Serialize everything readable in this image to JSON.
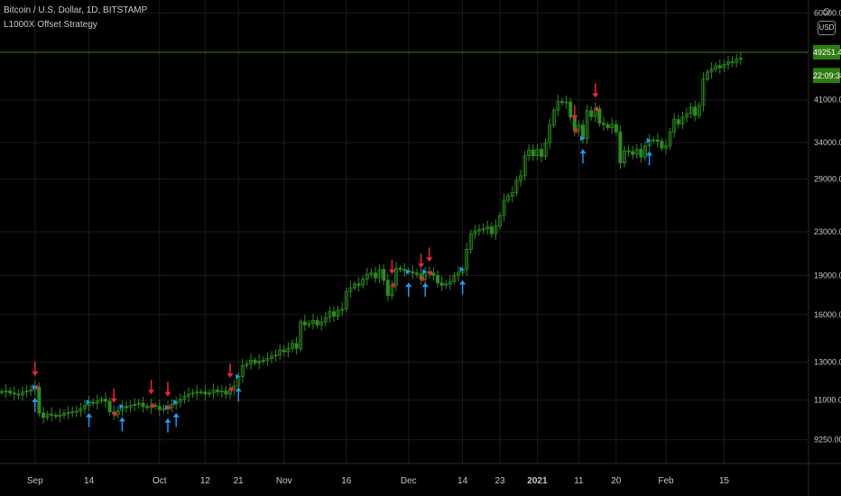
{
  "legend": {
    "title": "Bitcoin / U.S. Dollar, 1D, BITSTAMP",
    "indicator": "L1000X Offset Strategy"
  },
  "currency_button": "USD",
  "price_label": "49251.44",
  "countdown_label": "22:09:38",
  "colors": {
    "background": "#000000",
    "candle": "#2e8b1f",
    "tag": "#2e7d0f",
    "grid": "#1c1c1c",
    "up_arrow": "#2196f3",
    "down_arrow": "#f0233c",
    "axis_text": "#c8c8c8",
    "price_line": "#3d7a16"
  },
  "chart_data": {
    "type": "candlestick",
    "y_scale": "log",
    "ylim": [
      8400,
      62000
    ],
    "y_ticks": [
      {
        "v": 60000,
        "label": "60000.00"
      },
      {
        "v": 41000,
        "label": "41000.00"
      },
      {
        "v": 34000,
        "label": "34000.00"
      },
      {
        "v": 29000,
        "label": "29000.00"
      },
      {
        "v": 23000,
        "label": "23000.00"
      },
      {
        "v": 19000,
        "label": "19000.00"
      },
      {
        "v": 16000,
        "label": "16000.00"
      },
      {
        "v": 13000,
        "label": "13000.00"
      },
      {
        "v": 11000,
        "label": "11000.00"
      },
      {
        "v": 9250,
        "label": "9250.00"
      }
    ],
    "x_ticks": [
      {
        "i": 8,
        "label": "Sep"
      },
      {
        "i": 21,
        "label": "14"
      },
      {
        "i": 38,
        "label": "Oct"
      },
      {
        "i": 49,
        "label": "12"
      },
      {
        "i": 57,
        "label": "21"
      },
      {
        "i": 68,
        "label": "Nov"
      },
      {
        "i": 83,
        "label": "16"
      },
      {
        "i": 98,
        "label": "Dec"
      },
      {
        "i": 111,
        "label": "14"
      },
      {
        "i": 120,
        "label": "23"
      },
      {
        "i": 129,
        "label": "2021"
      },
      {
        "i": 139,
        "label": "11"
      },
      {
        "i": 148,
        "label": "20"
      },
      {
        "i": 160,
        "label": "Feb"
      },
      {
        "i": 174,
        "label": "15"
      }
    ],
    "closes": [
      11400,
      11450,
      11350,
      11300,
      11250,
      11400,
      11450,
      11500,
      11650,
      10400,
      10200,
      10350,
      10300,
      10250,
      10300,
      10380,
      10420,
      10450,
      10480,
      10600,
      10750,
      10900,
      10850,
      10950,
      11050,
      10950,
      10450,
      10350,
      10500,
      10700,
      10650,
      10750,
      10800,
      10850,
      10700,
      10650,
      10750,
      10700,
      10550,
      10600,
      10650,
      10800,
      10900,
      11050,
      11200,
      11300,
      11350,
      11400,
      11400,
      11300,
      11350,
      11500,
      11400,
      11450,
      11300,
      11550,
      11700,
      12200,
      12800,
      12900,
      13100,
      12950,
      13050,
      13100,
      13200,
      13350,
      13400,
      13700,
      13600,
      13800,
      14100,
      13800,
      15500,
      15300,
      15400,
      15600,
      15300,
      15500,
      15800,
      16200,
      15900,
      16300,
      16400,
      17700,
      18000,
      18300,
      18200,
      18700,
      19100,
      19200,
      18800,
      19500,
      18600,
      17400,
      18200,
      19600,
      19500,
      19400,
      19300,
      19200,
      19100,
      18700,
      19300,
      19200,
      19000,
      18400,
      18200,
      18300,
      18500,
      19000,
      19200,
      19500,
      21300,
      22800,
      23100,
      23200,
      23300,
      23500,
      22800,
      23600,
      24700,
      26400,
      26900,
      27300,
      28800,
      29400,
      32100,
      32900,
      32100,
      33000,
      32000,
      34000,
      36700,
      39200,
      40700,
      40500,
      40600,
      38000,
      35800,
      36700,
      34600,
      39100,
      38100,
      39400,
      37000,
      36800,
      36300,
      36800,
      35600,
      31100,
      32800,
      32700,
      32300,
      33000,
      31900,
      33500,
      34300,
      34400,
      34200,
      33200,
      33500,
      35600,
      37600,
      36900,
      38000,
      38600,
      39700,
      38300,
      40000,
      44900,
      46300,
      46900,
      47600,
      47200,
      47900,
      48400,
      48300,
      49000,
      49251
    ]
  },
  "signals": [
    {
      "i": 8,
      "dir": "down"
    },
    {
      "i": 8,
      "dir": "up"
    },
    {
      "i": 21,
      "dir": "up"
    },
    {
      "i": 27,
      "dir": "down"
    },
    {
      "i": 29,
      "dir": "up"
    },
    {
      "i": 36,
      "dir": "down"
    },
    {
      "i": 40,
      "dir": "up"
    },
    {
      "i": 40,
      "dir": "down"
    },
    {
      "i": 42,
      "dir": "up"
    },
    {
      "i": 55,
      "dir": "down"
    },
    {
      "i": 57,
      "dir": "up"
    },
    {
      "i": 94,
      "dir": "down"
    },
    {
      "i": 98,
      "dir": "up"
    },
    {
      "i": 101,
      "dir": "down"
    },
    {
      "i": 102,
      "dir": "up"
    },
    {
      "i": 103,
      "dir": "down"
    },
    {
      "i": 111,
      "dir": "up"
    },
    {
      "i": 138,
      "dir": "down"
    },
    {
      "i": 140,
      "dir": "up"
    },
    {
      "i": 143,
      "dir": "down"
    },
    {
      "i": 156,
      "dir": "up"
    }
  ]
}
